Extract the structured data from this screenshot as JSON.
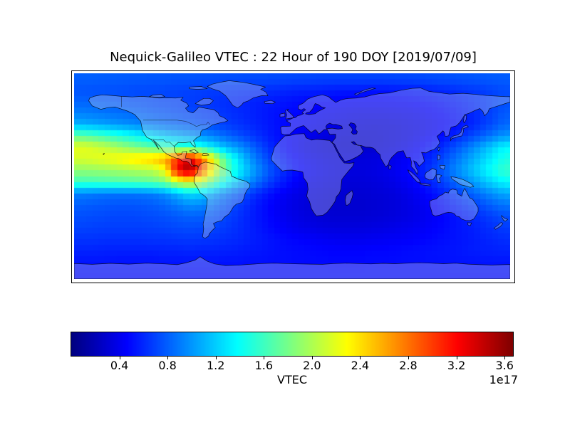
{
  "figure": {
    "title": "Nequick-Galileo VTEC : 22 Hour of 190 DOY [2019/07/09]",
    "background": "#ffffff",
    "frame_color": "#000000"
  },
  "colorbar": {
    "label": "VTEC",
    "offset_label": "1e17",
    "tick_labels": [
      "0.4",
      "0.8",
      "1.2",
      "1.6",
      "2.0",
      "2.4",
      "2.8",
      "3.2",
      "3.6"
    ],
    "tick_values": [
      0.4,
      0.8,
      1.2,
      1.6,
      2.0,
      2.4,
      2.8,
      3.2,
      3.6
    ],
    "vmin": 0.0,
    "vmax": 3.67,
    "colormap": "jet",
    "orientation": "horizontal"
  },
  "chart_data": {
    "type": "heatmap",
    "title": "Nequick-Galileo VTEC : 22 Hour of 190 DOY [2019/07/09]",
    "model": "Nequick-Galileo",
    "hour_utc": 22,
    "day_of_year": 190,
    "date": "2019/07/09",
    "projection": "equirectangular world map, lon -180..180, lat 90..-90",
    "units": "VTEC (electrons/m^2), values in 1e17",
    "colormap": "jet",
    "vmin": 0.0,
    "vmax": 3.67,
    "legend_position": "horizontal colorbar below map",
    "grid": false,
    "peak": {
      "lon": -88,
      "lat": 10,
      "value_1e17": 3.55,
      "note": "red maximum over Central America / eastern Pacific"
    },
    "lon_centers": [
      -175,
      -165,
      -155,
      -145,
      -135,
      -125,
      -115,
      -105,
      -95,
      -85,
      -75,
      -65,
      -55,
      -45,
      -35,
      -25,
      -15,
      -5,
      5,
      15,
      25,
      35,
      45,
      55,
      65,
      75,
      85,
      95,
      105,
      115,
      125,
      135,
      145,
      155,
      165,
      175
    ],
    "lat_centers": [
      85,
      75,
      65,
      55,
      45,
      35,
      25,
      15,
      5,
      -5,
      -15,
      -25,
      -35,
      -45,
      -55,
      -65,
      -75,
      -85
    ],
    "values_1e17": [
      [
        0.8,
        0.8,
        0.79,
        0.79,
        0.78,
        0.78,
        0.77,
        0.77,
        0.76,
        0.76,
        0.75,
        0.75,
        0.74,
        0.74,
        0.73,
        0.73,
        0.72,
        0.72,
        0.71,
        0.71,
        0.7,
        0.7,
        0.7,
        0.7,
        0.7,
        0.7,
        0.71,
        0.71,
        0.72,
        0.73,
        0.74,
        0.75,
        0.76,
        0.77,
        0.78,
        0.79
      ],
      [
        0.76,
        0.75,
        0.75,
        0.74,
        0.73,
        0.72,
        0.72,
        0.71,
        0.7,
        0.69,
        0.68,
        0.67,
        0.66,
        0.65,
        0.63,
        0.62,
        0.61,
        0.59,
        0.58,
        0.57,
        0.56,
        0.55,
        0.54,
        0.54,
        0.53,
        0.53,
        0.54,
        0.55,
        0.56,
        0.58,
        0.6,
        0.62,
        0.65,
        0.67,
        0.7,
        0.73
      ],
      [
        0.82,
        0.81,
        0.79,
        0.78,
        0.76,
        0.75,
        0.73,
        0.71,
        0.7,
        0.68,
        0.66,
        0.64,
        0.62,
        0.6,
        0.58,
        0.56,
        0.54,
        0.52,
        0.5,
        0.48,
        0.47,
        0.46,
        0.45,
        0.44,
        0.44,
        0.44,
        0.45,
        0.46,
        0.48,
        0.5,
        0.53,
        0.56,
        0.6,
        0.64,
        0.69,
        0.74
      ],
      [
        0.92,
        0.9,
        0.88,
        0.86,
        0.84,
        0.82,
        0.79,
        0.77,
        0.74,
        0.72,
        0.69,
        0.67,
        0.64,
        0.61,
        0.58,
        0.55,
        0.52,
        0.49,
        0.47,
        0.44,
        0.42,
        0.41,
        0.39,
        0.38,
        0.38,
        0.38,
        0.39,
        0.4,
        0.42,
        0.45,
        0.48,
        0.52,
        0.57,
        0.63,
        0.7,
        0.78
      ],
      [
        1.1,
        1.07,
        1.04,
        1.0,
        0.97,
        0.93,
        0.9,
        0.86,
        0.83,
        0.79,
        0.76,
        0.72,
        0.68,
        0.64,
        0.6,
        0.56,
        0.52,
        0.48,
        0.45,
        0.42,
        0.39,
        0.37,
        0.35,
        0.34,
        0.33,
        0.33,
        0.34,
        0.36,
        0.38,
        0.41,
        0.45,
        0.5,
        0.56,
        0.64,
        0.73,
        0.83
      ],
      [
        1.72,
        1.67,
        1.6,
        1.52,
        1.44,
        1.35,
        1.26,
        1.17,
        1.1,
        1.04,
        0.98,
        0.91,
        0.83,
        0.75,
        0.67,
        0.6,
        0.53,
        0.47,
        0.42,
        0.38,
        0.35,
        0.33,
        0.31,
        0.3,
        0.3,
        0.31,
        0.33,
        0.36,
        0.4,
        0.45,
        0.51,
        0.59,
        0.68,
        0.78,
        0.89,
        1.0
      ],
      [
        2.2,
        2.16,
        2.08,
        1.98,
        1.88,
        1.78,
        1.69,
        1.62,
        1.6,
        1.56,
        1.46,
        1.3,
        1.12,
        1.0,
        0.85,
        0.7,
        0.57,
        0.47,
        0.4,
        0.35,
        0.32,
        0.3,
        0.29,
        0.29,
        0.3,
        0.32,
        0.35,
        0.39,
        0.45,
        0.53,
        0.63,
        0.75,
        0.89,
        1.04,
        1.2,
        1.36
      ],
      [
        2.15,
        2.18,
        2.23,
        2.29,
        2.36,
        2.43,
        2.5,
        2.62,
        3.02,
        3.38,
        2.86,
        2.22,
        1.66,
        1.28,
        1.0,
        0.8,
        0.64,
        0.53,
        0.45,
        0.39,
        0.36,
        0.34,
        0.33,
        0.33,
        0.34,
        0.36,
        0.39,
        0.44,
        0.51,
        0.61,
        0.73,
        0.87,
        1.02,
        1.17,
        1.32,
        1.47
      ],
      [
        1.9,
        1.91,
        1.93,
        1.96,
        1.99,
        2.02,
        2.06,
        2.28,
        3.25,
        3.55,
        2.95,
        2.24,
        1.72,
        1.36,
        1.1,
        0.89,
        0.71,
        0.58,
        0.48,
        0.42,
        0.38,
        0.35,
        0.34,
        0.34,
        0.35,
        0.37,
        0.41,
        0.46,
        0.55,
        0.66,
        0.8,
        0.95,
        1.1,
        1.26,
        1.42,
        1.56
      ],
      [
        1.6,
        1.61,
        1.63,
        1.65,
        1.67,
        1.69,
        1.72,
        1.81,
        2.08,
        2.22,
        2.02,
        1.71,
        1.41,
        1.16,
        0.96,
        0.78,
        0.63,
        0.52,
        0.43,
        0.38,
        0.35,
        0.33,
        0.32,
        0.32,
        0.33,
        0.35,
        0.38,
        0.43,
        0.5,
        0.59,
        0.7,
        0.83,
        0.96,
        1.1,
        1.23,
        1.36
      ],
      [
        0.92,
        0.9,
        0.88,
        0.87,
        0.87,
        0.88,
        0.9,
        0.97,
        1.12,
        1.26,
        1.21,
        1.06,
        0.91,
        0.79,
        0.67,
        0.57,
        0.48,
        0.42,
        0.37,
        0.34,
        0.32,
        0.3,
        0.3,
        0.3,
        0.31,
        0.32,
        0.34,
        0.38,
        0.43,
        0.5,
        0.58,
        0.67,
        0.77,
        0.87,
        0.97,
        1.06
      ],
      [
        0.8,
        0.78,
        0.77,
        0.76,
        0.76,
        0.77,
        0.79,
        0.83,
        0.9,
        0.97,
        0.95,
        0.87,
        0.77,
        0.68,
        0.59,
        0.51,
        0.44,
        0.39,
        0.35,
        0.32,
        0.3,
        0.29,
        0.29,
        0.29,
        0.3,
        0.31,
        0.33,
        0.36,
        0.4,
        0.45,
        0.51,
        0.58,
        0.65,
        0.73,
        0.81,
        0.88
      ],
      [
        0.74,
        0.73,
        0.72,
        0.71,
        0.71,
        0.72,
        0.73,
        0.75,
        0.78,
        0.81,
        0.8,
        0.76,
        0.7,
        0.64,
        0.57,
        0.51,
        0.45,
        0.4,
        0.36,
        0.33,
        0.31,
        0.3,
        0.3,
        0.3,
        0.31,
        0.32,
        0.34,
        0.36,
        0.39,
        0.43,
        0.47,
        0.52,
        0.57,
        0.63,
        0.69,
        0.74
      ],
      [
        0.7,
        0.69,
        0.68,
        0.68,
        0.68,
        0.68,
        0.69,
        0.7,
        0.72,
        0.73,
        0.72,
        0.7,
        0.66,
        0.62,
        0.57,
        0.52,
        0.47,
        0.43,
        0.39,
        0.37,
        0.35,
        0.34,
        0.34,
        0.34,
        0.35,
        0.36,
        0.38,
        0.4,
        0.42,
        0.45,
        0.48,
        0.52,
        0.55,
        0.59,
        0.63,
        0.67
      ],
      [
        0.64,
        0.64,
        0.63,
        0.63,
        0.63,
        0.63,
        0.64,
        0.64,
        0.65,
        0.66,
        0.65,
        0.64,
        0.62,
        0.6,
        0.57,
        0.54,
        0.51,
        0.48,
        0.46,
        0.44,
        0.42,
        0.41,
        0.4,
        0.4,
        0.41,
        0.42,
        0.43,
        0.44,
        0.46,
        0.48,
        0.5,
        0.52,
        0.54,
        0.57,
        0.59,
        0.62
      ],
      [
        0.58,
        0.58,
        0.57,
        0.57,
        0.57,
        0.57,
        0.57,
        0.58,
        0.58,
        0.59,
        0.58,
        0.58,
        0.57,
        0.56,
        0.54,
        0.53,
        0.51,
        0.5,
        0.49,
        0.48,
        0.47,
        0.46,
        0.46,
        0.46,
        0.47,
        0.47,
        0.48,
        0.49,
        0.5,
        0.51,
        0.52,
        0.53,
        0.55,
        0.56,
        0.57,
        0.58
      ],
      [
        0.53,
        0.53,
        0.53,
        0.52,
        0.52,
        0.52,
        0.52,
        0.53,
        0.53,
        0.53,
        0.53,
        0.53,
        0.52,
        0.52,
        0.51,
        0.51,
        0.5,
        0.5,
        0.49,
        0.49,
        0.49,
        0.48,
        0.48,
        0.48,
        0.49,
        0.49,
        0.49,
        0.5,
        0.5,
        0.51,
        0.51,
        0.52,
        0.52,
        0.53,
        0.53,
        0.53
      ],
      [
        0.5,
        0.5,
        0.5,
        0.5,
        0.5,
        0.5,
        0.5,
        0.5,
        0.5,
        0.5,
        0.5,
        0.5,
        0.5,
        0.5,
        0.5,
        0.5,
        0.5,
        0.5,
        0.5,
        0.5,
        0.5,
        0.5,
        0.5,
        0.5,
        0.5,
        0.5,
        0.5,
        0.5,
        0.5,
        0.5,
        0.5,
        0.5,
        0.5,
        0.5,
        0.5,
        0.5
      ]
    ]
  }
}
